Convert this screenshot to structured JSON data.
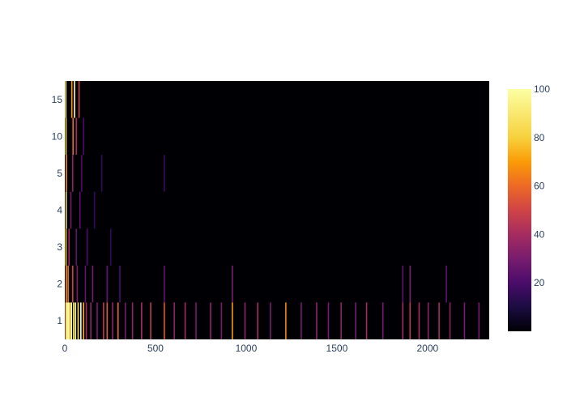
{
  "chart_data": {
    "type": "heatmap",
    "title": "",
    "xlabel": "",
    "ylabel": "",
    "xlim": [
      0,
      2340
    ],
    "x_ticks": [
      "0",
      "500",
      "1000",
      "1500",
      "2000"
    ],
    "x_tick_values": [
      0,
      500,
      1000,
      1500,
      2000
    ],
    "y_categories": [
      "1",
      "2",
      "3",
      "4",
      "5",
      "10",
      "15"
    ],
    "colorscale": "inferno",
    "zlim": [
      0,
      100
    ],
    "colorbar_ticks": [
      "20",
      "40",
      "60",
      "80",
      "100"
    ],
    "colorbar_tick_values": [
      20,
      40,
      60,
      80,
      100
    ],
    "stripes": [
      {
        "x": 2,
        "row": "1",
        "z": 60
      },
      {
        "x": 5,
        "row": "1",
        "z": 100
      },
      {
        "x": 12,
        "row": "1",
        "z": 95
      },
      {
        "x": 18,
        "row": "1",
        "z": 100
      },
      {
        "x": 25,
        "row": "1",
        "z": 80
      },
      {
        "x": 33,
        "row": "1",
        "z": 100
      },
      {
        "x": 45,
        "row": "1",
        "z": 90
      },
      {
        "x": 55,
        "row": "1",
        "z": 100
      },
      {
        "x": 70,
        "row": "1",
        "z": 85
      },
      {
        "x": 85,
        "row": "1",
        "z": 100
      },
      {
        "x": 100,
        "row": "1",
        "z": 75
      },
      {
        "x": 115,
        "row": "1",
        "z": 40
      },
      {
        "x": 140,
        "row": "1",
        "z": 35
      },
      {
        "x": 175,
        "row": "1",
        "z": 30
      },
      {
        "x": 210,
        "row": "1",
        "z": 45
      },
      {
        "x": 230,
        "row": "1",
        "z": 55
      },
      {
        "x": 260,
        "row": "1",
        "z": 35
      },
      {
        "x": 290,
        "row": "1",
        "z": 60
      },
      {
        "x": 330,
        "row": "1",
        "z": 30
      },
      {
        "x": 370,
        "row": "1",
        "z": 35
      },
      {
        "x": 420,
        "row": "1",
        "z": 40
      },
      {
        "x": 470,
        "row": "1",
        "z": 45
      },
      {
        "x": 545,
        "row": "1",
        "z": 55
      },
      {
        "x": 600,
        "row": "1",
        "z": 35
      },
      {
        "x": 660,
        "row": "1",
        "z": 40
      },
      {
        "x": 720,
        "row": "1",
        "z": 30
      },
      {
        "x": 800,
        "row": "1",
        "z": 35
      },
      {
        "x": 860,
        "row": "1",
        "z": 30
      },
      {
        "x": 920,
        "row": "1",
        "z": 70
      },
      {
        "x": 990,
        "row": "1",
        "z": 35
      },
      {
        "x": 1060,
        "row": "1",
        "z": 40
      },
      {
        "x": 1130,
        "row": "1",
        "z": 30
      },
      {
        "x": 1215,
        "row": "1",
        "z": 65
      },
      {
        "x": 1300,
        "row": "1",
        "z": 30
      },
      {
        "x": 1385,
        "row": "1",
        "z": 35
      },
      {
        "x": 1450,
        "row": "1",
        "z": 30
      },
      {
        "x": 1520,
        "row": "1",
        "z": 35
      },
      {
        "x": 1600,
        "row": "1",
        "z": 30
      },
      {
        "x": 1660,
        "row": "1",
        "z": 40
      },
      {
        "x": 1750,
        "row": "1",
        "z": 30
      },
      {
        "x": 1860,
        "row": "1",
        "z": 40
      },
      {
        "x": 1900,
        "row": "1",
        "z": 45
      },
      {
        "x": 1950,
        "row": "1",
        "z": 40
      },
      {
        "x": 2000,
        "row": "1",
        "z": 35
      },
      {
        "x": 2060,
        "row": "1",
        "z": 40
      },
      {
        "x": 2120,
        "row": "1",
        "z": 35
      },
      {
        "x": 2200,
        "row": "1",
        "z": 30
      },
      {
        "x": 2280,
        "row": "1",
        "z": 30
      },
      {
        "x": 5,
        "row": "2",
        "z": 70
      },
      {
        "x": 15,
        "row": "2",
        "z": 60
      },
      {
        "x": 40,
        "row": "2",
        "z": 50
      },
      {
        "x": 65,
        "row": "2",
        "z": 30
      },
      {
        "x": 110,
        "row": "2",
        "z": 25
      },
      {
        "x": 150,
        "row": "2",
        "z": 30
      },
      {
        "x": 230,
        "row": "2",
        "z": 25
      },
      {
        "x": 300,
        "row": "2",
        "z": 20
      },
      {
        "x": 545,
        "row": "2",
        "z": 25
      },
      {
        "x": 920,
        "row": "2",
        "z": 30
      },
      {
        "x": 1860,
        "row": "2",
        "z": 25
      },
      {
        "x": 1900,
        "row": "2",
        "z": 30
      },
      {
        "x": 2100,
        "row": "2",
        "z": 25
      },
      {
        "x": 3,
        "row": "3",
        "z": 80
      },
      {
        "x": 20,
        "row": "3",
        "z": 40
      },
      {
        "x": 60,
        "row": "3",
        "z": 25
      },
      {
        "x": 120,
        "row": "3",
        "z": 20
      },
      {
        "x": 250,
        "row": "3",
        "z": 15
      },
      {
        "x": 4,
        "row": "4",
        "z": 90
      },
      {
        "x": 30,
        "row": "4",
        "z": 30
      },
      {
        "x": 80,
        "row": "4",
        "z": 25
      },
      {
        "x": 160,
        "row": "4",
        "z": 15
      },
      {
        "x": 5,
        "row": "5",
        "z": 70
      },
      {
        "x": 40,
        "row": "5",
        "z": 35
      },
      {
        "x": 90,
        "row": "5",
        "z": 20
      },
      {
        "x": 200,
        "row": "5",
        "z": 15
      },
      {
        "x": 545,
        "row": "5",
        "z": 15
      },
      {
        "x": 3,
        "row": "10",
        "z": 85
      },
      {
        "x": 42,
        "row": "10",
        "z": 60
      },
      {
        "x": 60,
        "row": "10",
        "z": 40
      },
      {
        "x": 100,
        "row": "10",
        "z": 20
      },
      {
        "x": 2,
        "row": "15",
        "z": 95
      },
      {
        "x": 35,
        "row": "15",
        "z": 70
      },
      {
        "x": 50,
        "row": "15",
        "z": 100
      },
      {
        "x": 75,
        "row": "15",
        "z": 50
      }
    ]
  }
}
